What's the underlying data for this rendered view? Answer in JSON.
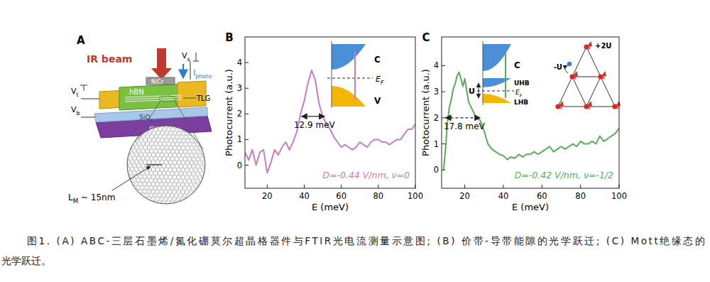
{
  "panel_a": {
    "label": "A",
    "ir_beam": "IR beam",
    "vs": {
      "main": "V",
      "sub": "s"
    },
    "iphoto": {
      "main": "I",
      "sub": "photo"
    },
    "nicr": "NiCr",
    "hbn": "hBN",
    "tlg": "TLG",
    "sio2": {
      "main": "SiO",
      "sub": "2"
    },
    "si": "Si",
    "vt": {
      "main": "V",
      "sub": "t"
    },
    "vb": {
      "main": "V",
      "sub": "b"
    },
    "moire": {
      "main": "L",
      "sub": "M",
      "tail": " ~ 15nm"
    }
  },
  "chart_data": [
    {
      "type": "line",
      "panel": "B",
      "xlabel": "E (meV)",
      "ylabel": "Photocurrent (a.u.)",
      "x": [
        8,
        10,
        12,
        14,
        16,
        18,
        20,
        22,
        24,
        26,
        28,
        30,
        32,
        34,
        36,
        38,
        40,
        42,
        44,
        46,
        48,
        50,
        52,
        54,
        56,
        58,
        60,
        62,
        64,
        66,
        68,
        70,
        72,
        74,
        76,
        78,
        80,
        82,
        84,
        86,
        88,
        90,
        92,
        94,
        96,
        98,
        100
      ],
      "values": [
        0.5,
        0.2,
        0.6,
        0.0,
        0.5,
        0.6,
        -0.3,
        0.1,
        0.6,
        0.4,
        0.7,
        0.9,
        0.6,
        0.9,
        1.3,
        2.0,
        2.5,
        3.2,
        3.7,
        3.3,
        2.4,
        1.9,
        1.6,
        1.4,
        1.1,
        0.9,
        0.7,
        0.8,
        0.7,
        0.6,
        0.7,
        0.9,
        0.8,
        0.7,
        0.9,
        1.0,
        1.0,
        0.9,
        0.9,
        0.8,
        0.9,
        1.0,
        1.0,
        1.2,
        1.4,
        1.4,
        1.6
      ],
      "color": "#c77dbf",
      "xlim": [
        8,
        100
      ],
      "ylim": [
        -0.9,
        5
      ],
      "xticks": [
        20,
        40,
        60,
        80,
        100
      ],
      "yticks": [
        0,
        1,
        2,
        3,
        4
      ],
      "grid": false,
      "annotations": [
        {
          "text": "12.9 meV",
          "x": [
            38.5,
            51
          ],
          "y": 1.9,
          "line_style": "solid"
        }
      ],
      "label": "D=-0.44 V/nm, ν=0",
      "inset": {
        "labels": [
          "C",
          {
            "main": "E",
            "sub": "F"
          },
          "V"
        ]
      }
    },
    {
      "type": "line",
      "panel": "C",
      "xlabel": "E (meV)",
      "ylabel": "Photocurrent (a.u.)",
      "x": [
        9,
        10,
        11,
        12,
        13,
        14,
        15,
        16,
        17,
        18,
        19,
        20,
        22,
        24,
        26,
        28,
        30,
        32,
        34,
        36,
        38,
        40,
        42,
        44,
        46,
        48,
        50,
        52,
        54,
        56,
        58,
        60,
        62,
        64,
        66,
        68,
        70,
        72,
        74,
        76,
        78,
        80,
        82,
        84,
        86,
        88,
        90,
        92,
        94,
        96,
        98,
        100
      ],
      "values": [
        0.0,
        0.8,
        1.8,
        2.4,
        2.7,
        3.1,
        3.3,
        3.6,
        3.75,
        3.5,
        3.2,
        3.5,
        2.6,
        2.3,
        2.0,
        1.9,
        1.5,
        1.0,
        0.8,
        0.7,
        0.6,
        0.55,
        0.4,
        0.5,
        0.45,
        0.6,
        0.5,
        0.6,
        0.6,
        0.7,
        0.6,
        0.7,
        0.8,
        0.9,
        0.7,
        0.8,
        0.9,
        0.8,
        0.9,
        1.0,
        0.9,
        1.1,
        1.0,
        1.0,
        1.1,
        1.0,
        1.3,
        1.1,
        1.2,
        1.3,
        1.4,
        1.6
      ],
      "color": "#5aab5a",
      "xlim": [
        8,
        100
      ],
      "ylim": [
        -0.7,
        5.1
      ],
      "xticks": [
        20,
        40,
        60,
        80,
        100
      ],
      "yticks": [
        0,
        1,
        2,
        3,
        4
      ],
      "grid": false,
      "annotations": [
        {
          "text": "17.8 meV",
          "x": [
            10,
            28
          ],
          "y": 2.0,
          "line_style": "dashed"
        }
      ],
      "label": "D=-0.42 V/nm, ν=-1/2",
      "inset": {
        "labels": [
          "C",
          "UHB",
          {
            "main": "E",
            "sub": "F"
          },
          "LHB",
          "U"
        ]
      },
      "lattice": [
        "+2U",
        "-U"
      ]
    }
  ],
  "caption": [
    "图1. (A) ABC-三层石墨烯/氮化硼莫尔超晶格器件与FTIR光电流测量示意图; (B) 价带-导带能隙的光学跃迁; (C) Mott绝缘态的",
    "光学跃迁。"
  ]
}
